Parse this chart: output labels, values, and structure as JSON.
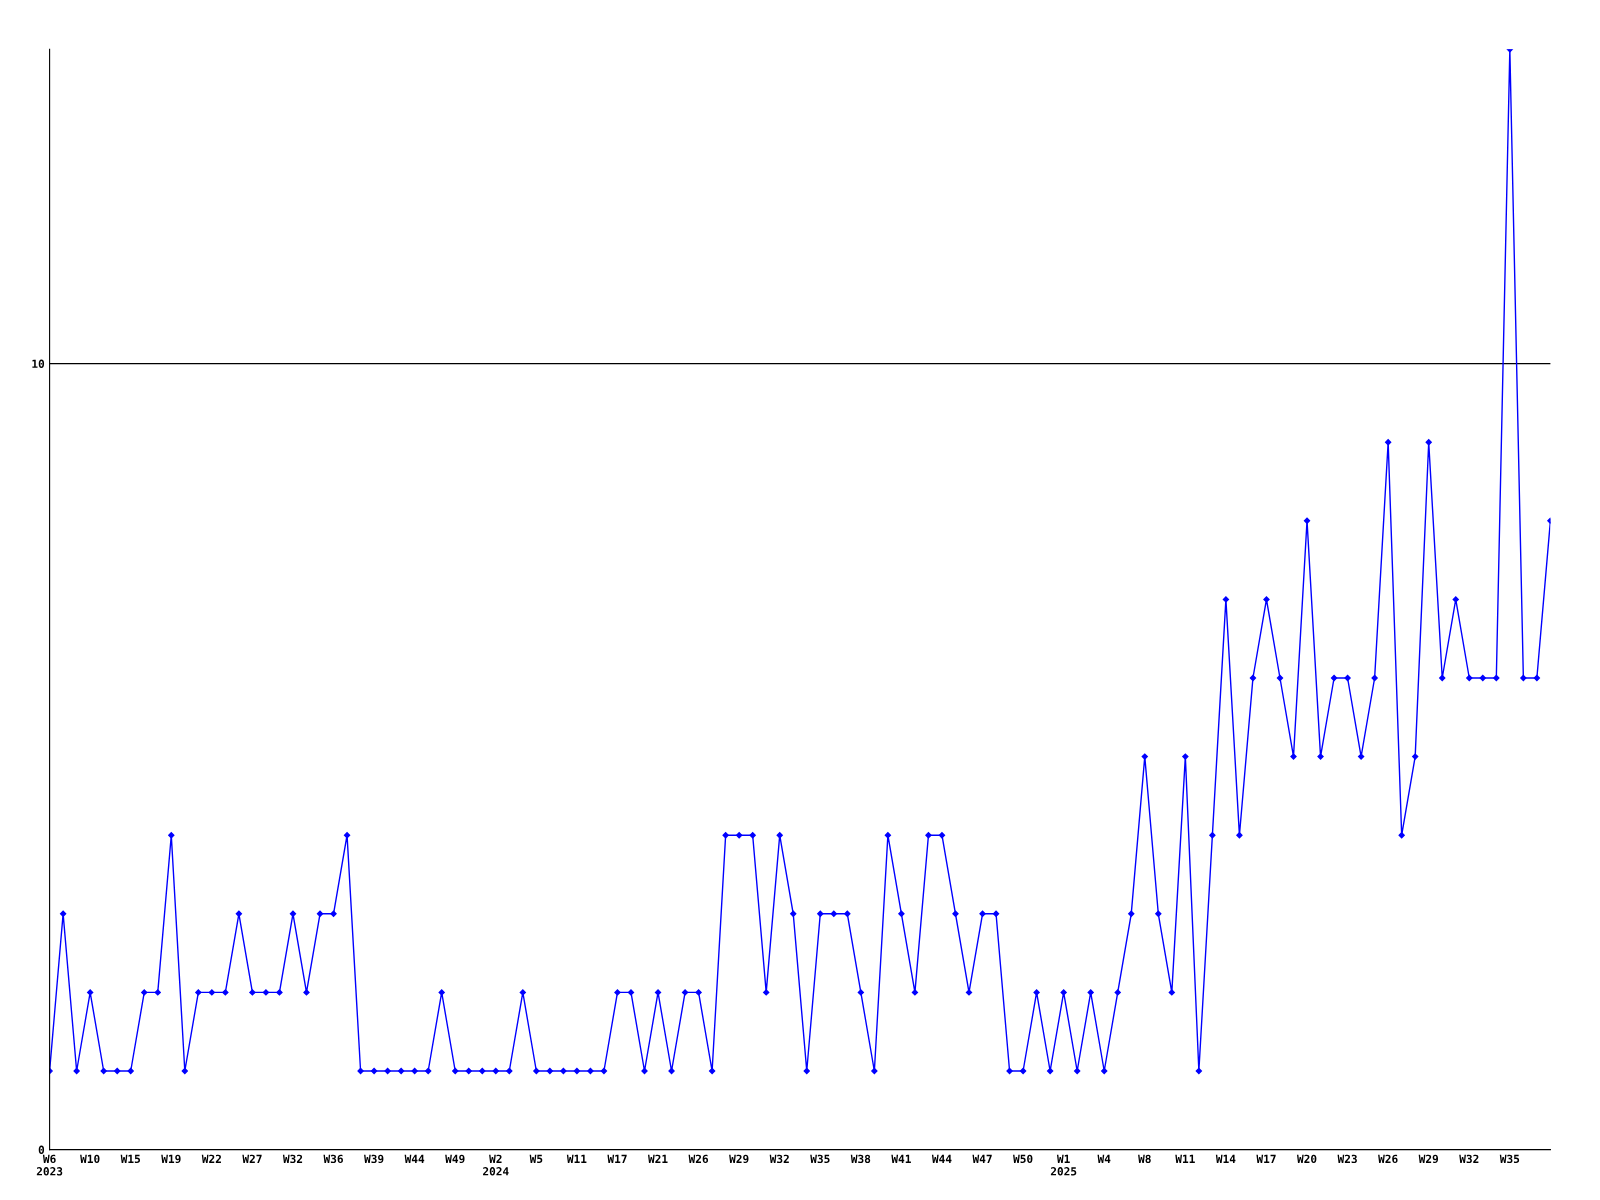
{
  "chart_data": {
    "type": "line",
    "categories": [
      "W6\n2023",
      null,
      null,
      "W10",
      null,
      null,
      "W15",
      null,
      null,
      "W19",
      null,
      null,
      "W22",
      null,
      null,
      "W27",
      null,
      null,
      "W32",
      null,
      null,
      "W36",
      null,
      null,
      "W39",
      null,
      null,
      "W44",
      null,
      null,
      "W49",
      null,
      null,
      "W2\n2024",
      null,
      null,
      "W5",
      null,
      null,
      "W11",
      null,
      null,
      "W17",
      null,
      null,
      "W21",
      null,
      null,
      "W26",
      null,
      null,
      "W29",
      null,
      null,
      "W32",
      null,
      null,
      "W35",
      null,
      null,
      "W38",
      null,
      null,
      "W41",
      null,
      null,
      "W44",
      null,
      null,
      "W47",
      null,
      null,
      "W50",
      null,
      null,
      "W1\n2025",
      null,
      null,
      "W4",
      null,
      null,
      "W8",
      null,
      null,
      "W11",
      null,
      null,
      "W14",
      null,
      null,
      "W17",
      null,
      null,
      "W20",
      null,
      null,
      "W23",
      null,
      null,
      "W26",
      null,
      null,
      "W29",
      null,
      null,
      "W32",
      null,
      null,
      "W35",
      null,
      null,
      null
    ],
    "series": [
      {
        "color": "#0000ff",
        "values": [
          1,
          3,
          1,
          2,
          1,
          1,
          1,
          2,
          2,
          4,
          1,
          2,
          2,
          2,
          3,
          2,
          2,
          2,
          3,
          2,
          3,
          3,
          4,
          1,
          1,
          1,
          1,
          1,
          1,
          2,
          1,
          1,
          1,
          1,
          1,
          2,
          1,
          1,
          1,
          1,
          1,
          1,
          2,
          2,
          1,
          2,
          1,
          2,
          2,
          1,
          4,
          4,
          4,
          2,
          4,
          3,
          1,
          3,
          3,
          3,
          2,
          1,
          4,
          3,
          2,
          4,
          4,
          3,
          2,
          3,
          3,
          1,
          1,
          2,
          1,
          2,
          1,
          2,
          1,
          2,
          3,
          5,
          3,
          2,
          5,
          1,
          4,
          7,
          4,
          6,
          7,
          6,
          5,
          8,
          5,
          6,
          6,
          5,
          6,
          9,
          4,
          5,
          9,
          6,
          7,
          6,
          6,
          6,
          14,
          6,
          6,
          8
        ]
      }
    ],
    "ylim": [
      0,
      14
    ],
    "yticks": [
      0,
      10
    ],
    "grid": "y",
    "marker": "diamond",
    "line_style": "solid",
    "legend": false
  }
}
